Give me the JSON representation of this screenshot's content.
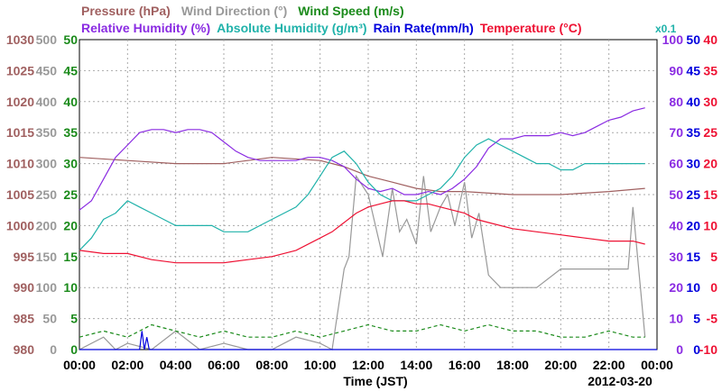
{
  "legend": {
    "row1": [
      {
        "label": "Pressure (hPa)",
        "color": "#a06060"
      },
      {
        "label": "Wind Direction (°)",
        "color": "#999999"
      },
      {
        "label": "Wind Speed (m/s)",
        "color": "#1a8a1a"
      }
    ],
    "row2": [
      {
        "label": "Relative Humidity (%)",
        "color": "#8a2be2"
      },
      {
        "label": "Absolute Humidity (g/m³)",
        "color": "#20b2aa"
      },
      {
        "label": "Rain Rate(mm/h)",
        "color": "#0000dd"
      },
      {
        "label": "Temperature (°C)",
        "color": "#ee1133"
      }
    ],
    "abs_scale_note": "x0.1"
  },
  "axes": {
    "pressure_ticks": [
      "1030",
      "1025",
      "1020",
      "1015",
      "1010",
      "1005",
      "1000",
      "995",
      "990",
      "985",
      "980"
    ],
    "wind_dir_ticks": [
      "500",
      "450",
      "400",
      "350",
      "300",
      "250",
      "200",
      "150",
      "100",
      "50",
      "0"
    ],
    "wind_speed_ticks": [
      "50",
      "45",
      "40",
      "35",
      "30",
      "25",
      "20",
      "15",
      "10",
      "5",
      "0"
    ],
    "rh_ticks": [
      "100",
      "90",
      "80",
      "70",
      "60",
      "50",
      "40",
      "30",
      "20",
      "10",
      "0"
    ],
    "abs_hum_ticks": [
      "50",
      "45",
      "40",
      "35",
      "30",
      "25",
      "20",
      "15",
      "10",
      "5",
      "0"
    ],
    "temp_ticks": [
      "40",
      "35",
      "30",
      "25",
      "20",
      "15",
      "10",
      "5",
      "0",
      "-5",
      "-10"
    ],
    "x_ticks": [
      "00:00",
      "02:00",
      "04:00",
      "06:00",
      "08:00",
      "10:00",
      "12:00",
      "14:00",
      "16:00",
      "18:00",
      "20:00",
      "22:00",
      "00:00"
    ],
    "xlabel": "Time (JST)",
    "date": "2012-03-20"
  },
  "chart_data": {
    "type": "line",
    "xlabel": "Time (JST)",
    "xlim": [
      0,
      24
    ],
    "date": "2012-03-20",
    "grid": true,
    "series": [
      {
        "name": "Pressure (hPa)",
        "color": "#a06060",
        "axis": "pressure",
        "ylim": [
          980,
          1030
        ],
        "x": [
          0,
          2,
          4,
          6,
          8,
          10,
          11,
          12,
          13,
          14,
          15,
          16,
          18,
          20,
          22,
          23.5
        ],
        "y": [
          1011,
          1010.5,
          1010,
          1010,
          1011,
          1010.5,
          1009.5,
          1008,
          1007,
          1006,
          1005.5,
          1005.5,
          1005,
          1005,
          1005.5,
          1006
        ]
      },
      {
        "name": "Wind Direction (°)",
        "color": "#999999",
        "axis": "wind_dir",
        "ylim": [
          0,
          500
        ],
        "x": [
          0,
          1,
          1.5,
          2,
          3,
          4,
          5,
          6,
          7,
          8,
          9,
          10,
          10.5,
          11,
          11.2,
          11.5,
          12,
          12.3,
          12.6,
          13,
          13.3,
          13.6,
          14,
          14.3,
          14.6,
          15,
          15.3,
          15.6,
          16,
          16.3,
          16.6,
          17,
          17.5,
          18,
          19,
          20,
          21,
          22,
          22.8,
          23,
          23.5
        ],
        "y": [
          0,
          20,
          0,
          10,
          0,
          30,
          0,
          10,
          0,
          0,
          20,
          10,
          0,
          130,
          150,
          280,
          250,
          200,
          150,
          260,
          190,
          210,
          170,
          280,
          190,
          230,
          250,
          200,
          270,
          180,
          220,
          120,
          100,
          100,
          100,
          130,
          130,
          130,
          130,
          230,
          20
        ]
      },
      {
        "name": "Wind Speed (m/s)",
        "color": "#1a8a1a",
        "axis": "wind_speed",
        "ylim": [
          0,
          50
        ],
        "x": [
          0,
          1,
          2,
          3,
          4,
          5,
          6,
          7,
          8,
          9,
          10,
          11,
          12,
          13,
          14,
          15,
          16,
          17,
          18,
          19,
          20,
          21,
          22,
          23,
          23.5
        ],
        "y": [
          2,
          3,
          2,
          4,
          3,
          2,
          3,
          2,
          2,
          3,
          2,
          3,
          4,
          3,
          3,
          4,
          3,
          4,
          3,
          3,
          2,
          2,
          3,
          2,
          2
        ]
      },
      {
        "name": "Relative Humidity (%)",
        "color": "#8a2be2",
        "axis": "rh",
        "ylim": [
          0,
          100
        ],
        "x": [
          0,
          0.5,
          1,
          1.5,
          2,
          2.5,
          3,
          3.5,
          4,
          4.5,
          5,
          5.5,
          6,
          6.5,
          7,
          7.5,
          8,
          8.5,
          9,
          9.5,
          10,
          10.5,
          11,
          11.5,
          12,
          12.5,
          13,
          13.5,
          14,
          14.5,
          15,
          15.5,
          16,
          16.5,
          17,
          17.5,
          18,
          18.5,
          19,
          19.5,
          20,
          20.5,
          21,
          21.5,
          22,
          22.5,
          23,
          23.5
        ],
        "y": [
          45,
          48,
          55,
          62,
          66,
          70,
          71,
          71,
          70,
          71,
          71,
          70,
          67,
          64,
          62,
          61,
          61,
          61,
          61,
          62,
          62,
          61,
          59,
          55,
          52,
          51,
          52,
          50,
          50,
          51,
          50,
          52,
          55,
          59,
          65,
          68,
          68,
          69,
          69,
          69,
          70,
          69,
          70,
          72,
          74,
          75,
          77,
          78
        ]
      },
      {
        "name": "Absolute Humidity (g/m³)",
        "color": "#20b2aa",
        "axis": "abs_hum",
        "ylim": [
          0,
          50
        ],
        "scale": "x0.1",
        "x": [
          0,
          0.5,
          1,
          1.5,
          2,
          2.5,
          3,
          3.5,
          4,
          4.5,
          5,
          5.5,
          6,
          6.5,
          7,
          7.5,
          8,
          8.5,
          9,
          9.5,
          10,
          10.5,
          11,
          11.5,
          12,
          12.5,
          13,
          13.5,
          14,
          14.5,
          15,
          15.5,
          16,
          16.5,
          17,
          17.5,
          18,
          18.5,
          19,
          19.5,
          20,
          20.5,
          21,
          21.5,
          22,
          22.5,
          23,
          23.5
        ],
        "y": [
          16,
          18,
          21,
          22,
          24,
          23,
          22,
          21,
          20,
          20,
          20,
          20,
          19,
          19,
          19,
          20,
          21,
          22,
          23,
          25,
          28,
          31,
          32,
          30,
          27,
          25,
          24,
          24,
          24,
          25,
          26,
          28,
          31,
          33,
          34,
          33,
          32,
          31,
          30,
          30,
          29,
          29,
          30,
          30,
          30,
          30,
          30,
          30
        ]
      },
      {
        "name": "Rain Rate(mm/h)",
        "color": "#0000dd",
        "axis": "rain",
        "ylim": [
          0,
          50
        ],
        "x": [
          0,
          2.5,
          2.6,
          2.7,
          2.8,
          2.9,
          3,
          24
        ],
        "y": [
          0,
          0,
          3,
          0,
          2,
          0,
          0,
          0
        ]
      },
      {
        "name": "Temperature (°C)",
        "color": "#ee1133",
        "axis": "temp",
        "ylim": [
          -10,
          40
        ],
        "x": [
          0,
          1,
          2,
          3,
          4,
          5,
          6,
          7,
          8,
          9,
          10,
          10.5,
          11,
          11.5,
          12,
          12.5,
          13,
          13.5,
          14,
          14.5,
          15,
          15.5,
          16,
          16.5,
          17,
          18,
          19,
          20,
          21,
          22,
          23,
          23.5
        ],
        "y": [
          6,
          5.5,
          5.5,
          4.5,
          4,
          4,
          4,
          4.5,
          5,
          6,
          8,
          9,
          10.5,
          12,
          13,
          13.5,
          14,
          14,
          13.5,
          13.5,
          13,
          12.5,
          12,
          11,
          10.5,
          9.5,
          9,
          8.5,
          8,
          7.5,
          7.5,
          7
        ]
      }
    ]
  }
}
